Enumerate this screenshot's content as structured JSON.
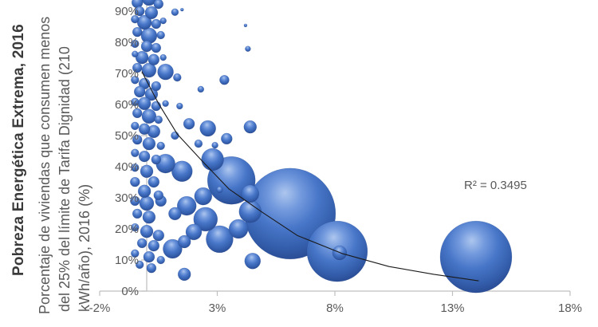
{
  "colors": {
    "background": "#ffffff",
    "bubble_base": "#4472c4",
    "bubble_highlight": "#adc6ee",
    "bubble_dark": "#294a8e",
    "axis_line": "#bfbfbf",
    "tick_text": "#595959",
    "title_text": "#3a3a3a",
    "subtitle_text": "#595959",
    "trendline": "#1a1a1a"
  },
  "chart_data": {
    "type": "scatter",
    "subtype": "bubble",
    "title": "Pobreza Energética Extrema, 2016",
    "subtitle_lines": [
      "Porcentaje de viviendas que consumen menos",
      "del 25% del límite de Tarifa Dignidad (210",
      "kWh/año), 2016 (%)"
    ],
    "legend": "none",
    "grid": false,
    "x_axis": {
      "tick_labels": [
        "-2%",
        "3%",
        "8%",
        "13%",
        "18%"
      ],
      "tick_values": [
        -2,
        3,
        8,
        13,
        18
      ],
      "range": [
        -2,
        18
      ]
    },
    "y_axis": {
      "tick_labels": [
        "0%",
        "10%",
        "20%",
        "30%",
        "40%",
        "50%",
        "60%",
        "70%",
        "80%",
        "90%"
      ],
      "tick_values": [
        0,
        10,
        20,
        30,
        40,
        50,
        60,
        70,
        80,
        90
      ],
      "range": [
        0,
        94
      ],
      "note": "top of plot clipped by screenshot crop"
    },
    "series": [
      {
        "name": "viviendas-bubbles",
        "point_format": [
          "x_pct",
          "y_pct",
          "radius_px"
        ],
        "points": [
          [
            -0.4,
            92.8,
            7
          ],
          [
            0.1,
            94.1,
            9
          ],
          [
            0.5,
            92.3,
            6
          ],
          [
            -0.3,
            90,
            6
          ],
          [
            0.2,
            89.5,
            8
          ],
          [
            -0.5,
            87.4,
            5
          ],
          [
            -0.1,
            86.4,
            9
          ],
          [
            0.4,
            85.9,
            6
          ],
          [
            0.7,
            86.9,
            4
          ],
          [
            -0.4,
            83.3,
            6
          ],
          [
            0.1,
            82.1,
            10
          ],
          [
            0.6,
            82.3,
            5
          ],
          [
            -0.5,
            79.5,
            5
          ],
          [
            0,
            78.7,
            7
          ],
          [
            0.4,
            78.2,
            6
          ],
          [
            -0.5,
            76.2,
            4
          ],
          [
            -0.2,
            75.1,
            8
          ],
          [
            0.3,
            74.4,
            7
          ],
          [
            0.7,
            75.1,
            4
          ],
          [
            -0.4,
            71.8,
            6
          ],
          [
            0.1,
            71,
            9
          ],
          [
            0.8,
            70.5,
            10
          ],
          [
            1.3,
            68.7,
            5
          ],
          [
            -0.5,
            67.9,
            5
          ],
          [
            -0.1,
            66.7,
            7
          ],
          [
            0.4,
            65.9,
            6
          ],
          [
            -0.3,
            64.1,
            7
          ],
          [
            0.2,
            63.3,
            8
          ],
          [
            -0.5,
            60.8,
            5
          ],
          [
            -0.1,
            60.3,
            8
          ],
          [
            0.4,
            59.5,
            6
          ],
          [
            0.8,
            60.3,
            4
          ],
          [
            1.4,
            59.5,
            4
          ],
          [
            -0.4,
            57.2,
            6
          ],
          [
            0.1,
            56.2,
            9
          ],
          [
            0.5,
            55.1,
            5
          ],
          [
            -0.5,
            53.1,
            5
          ],
          [
            -0.1,
            52.1,
            7
          ],
          [
            0.3,
            51.3,
            8
          ],
          [
            1.8,
            53.8,
            7
          ],
          [
            2.6,
            52.3,
            10
          ],
          [
            3.4,
            49,
            7
          ],
          [
            4.4,
            52.8,
            8
          ],
          [
            2.2,
            47.4,
            5
          ],
          [
            2.9,
            46.9,
            4
          ],
          [
            -0.4,
            48.7,
            6
          ],
          [
            0.1,
            47.4,
            8
          ],
          [
            0.6,
            46.7,
            5
          ],
          [
            1.2,
            50,
            5
          ],
          [
            -0.5,
            44.4,
            5
          ],
          [
            -0.1,
            43.3,
            7
          ],
          [
            0.4,
            42.3,
            6
          ],
          [
            0.8,
            41,
            12
          ],
          [
            1.5,
            38.5,
            13
          ],
          [
            3.6,
            35.6,
            30
          ],
          [
            2.8,
            42.3,
            14
          ],
          [
            3.1,
            32.6,
            4
          ],
          [
            -0.5,
            39.7,
            5
          ],
          [
            0,
            38.5,
            8
          ],
          [
            -0.5,
            35.1,
            6
          ],
          [
            0.3,
            35.1,
            7
          ],
          [
            -0.1,
            32.1,
            8
          ],
          [
            0.5,
            30.8,
            6
          ],
          [
            4.4,
            31.3,
            11
          ],
          [
            -0.5,
            29,
            6
          ],
          [
            0,
            28.2,
            9
          ],
          [
            0.6,
            29,
            7
          ],
          [
            1.7,
            27.4,
            12
          ],
          [
            2.4,
            30.5,
            11
          ],
          [
            2.5,
            23.1,
            15
          ],
          [
            1.2,
            24.9,
            8
          ],
          [
            -0.4,
            24.9,
            6
          ],
          [
            0.1,
            23.8,
            8
          ],
          [
            4.4,
            25.6,
            14
          ],
          [
            2,
            19,
            10
          ],
          [
            3.1,
            16.7,
            17
          ],
          [
            1.6,
            15.9,
            8
          ],
          [
            3.9,
            20,
            12
          ],
          [
            -0.5,
            20.5,
            5
          ],
          [
            0,
            19.2,
            8
          ],
          [
            0.5,
            17.9,
            7
          ],
          [
            1.1,
            13.6,
            12
          ],
          [
            -0.2,
            15.4,
            6
          ],
          [
            0.3,
            14.6,
            7
          ],
          [
            -0.5,
            12.1,
            5
          ],
          [
            0.1,
            11,
            7
          ],
          [
            0.6,
            10,
            5
          ],
          [
            -0.3,
            8.5,
            5
          ],
          [
            0.2,
            7.4,
            6
          ],
          [
            1.6,
            5.4,
            8
          ],
          [
            1.2,
            89.7,
            4.5
          ],
          [
            1.5,
            90.5,
            2
          ],
          [
            4.2,
            85.4,
            2
          ],
          [
            4.3,
            77.9,
            3.5
          ],
          [
            3.3,
            67.9,
            6
          ],
          [
            2.3,
            64.9,
            4
          ],
          [
            4.5,
            9.7,
            10
          ],
          [
            8.2,
            12.3,
            9
          ],
          [
            6.1,
            24.9,
            57
          ],
          [
            8.1,
            12.8,
            38
          ],
          [
            14,
            11,
            45
          ]
        ]
      }
    ],
    "trendline": {
      "fit": "exponential",
      "label": "R² = 0.3495",
      "r_squared": 0.3495,
      "points_pct": [
        [
          -0.2,
          70.5
        ],
        [
          0.5,
          60.3
        ],
        [
          1.3,
          50.5
        ],
        [
          2.3,
          42.3
        ],
        [
          3.5,
          32.8
        ],
        [
          4.9,
          25.4
        ],
        [
          6.4,
          17.9
        ],
        [
          8.3,
          12.1
        ],
        [
          10.3,
          7.9
        ],
        [
          12.2,
          5.4
        ],
        [
          14.1,
          3.3
        ]
      ]
    }
  }
}
